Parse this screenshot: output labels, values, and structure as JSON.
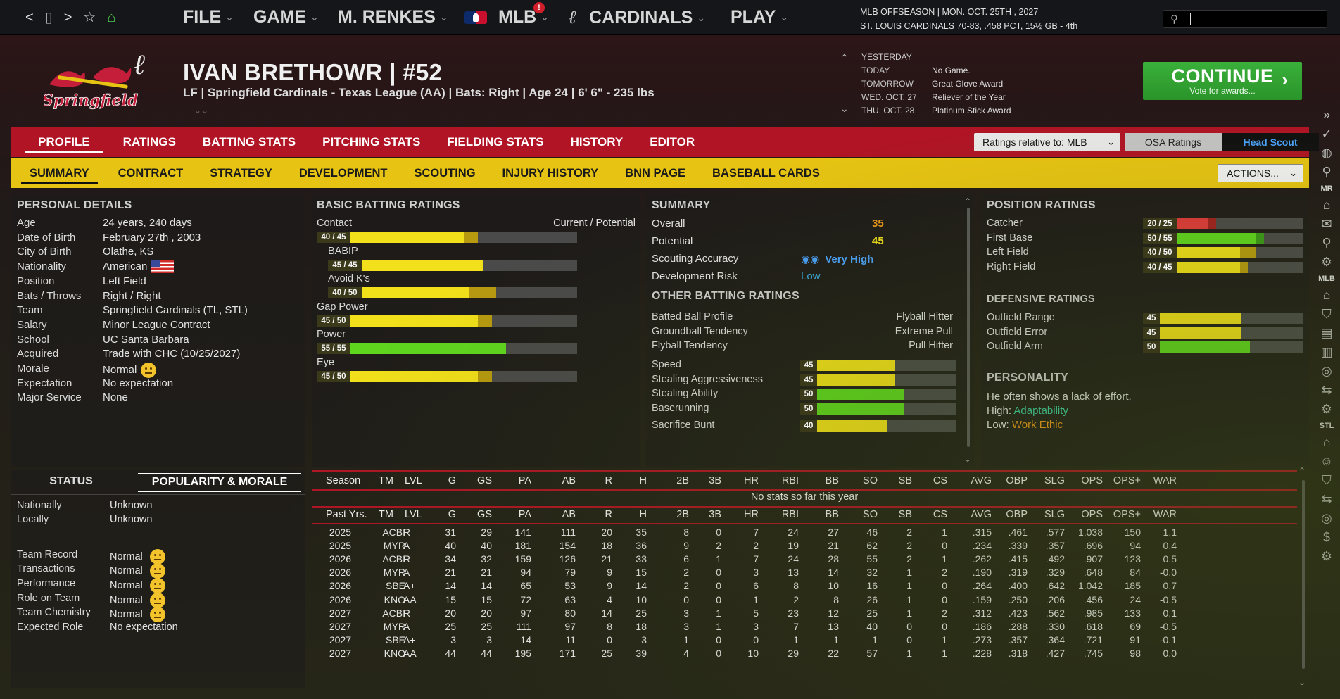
{
  "topbar": {
    "icons": [
      "back-icon",
      "device-icon",
      "forward-icon",
      "star-icon",
      "home-icon"
    ],
    "menu": [
      {
        "label": "FILE"
      },
      {
        "label": "GAME"
      },
      {
        "label": "M. RENKES"
      },
      {
        "label": "MLB"
      },
      {
        "label": "CARDINALS"
      },
      {
        "label": "PLAY"
      }
    ],
    "notification_badge": "!",
    "date_line1": "MLB OFFSEASON  |  MON. OCT. 25TH , 2027",
    "date_line2": "ST. LOUIS CARDINALS  70-83, .458 PCT, 15½ GB - 4th",
    "search_value": ""
  },
  "player": {
    "name": "IVAN BRETHOWR  |  #52",
    "info": "LF | Springfield Cardinals - Texas League (AA)  |  Bats: Right  |  Age 24  |  6' 6\"  - 235 lbs",
    "logo_text": "Springfield"
  },
  "news": {
    "items": [
      {
        "day": "YESTERDAY",
        "text": ""
      },
      {
        "day": "TODAY",
        "text": "No Game."
      },
      {
        "day": "TOMORROW",
        "text": "Great Glove Award"
      },
      {
        "day": "WED. OCT. 27",
        "text": "Reliever of the Year"
      },
      {
        "day": "THU. OCT. 28",
        "text": "Platinum Stick Award"
      }
    ]
  },
  "continue": {
    "label": "CONTINUE",
    "sub": "Vote for awards..."
  },
  "main_tabs": [
    "PROFILE",
    "RATINGS",
    "BATTING STATS",
    "PITCHING STATS",
    "FIELDING STATS",
    "HISTORY",
    "EDITOR"
  ],
  "ratings_relative": "Ratings relative to: MLB",
  "osa_ratings": "OSA Ratings",
  "head_scout": "Head Scout",
  "sub_tabs": [
    "SUMMARY",
    "CONTRACT",
    "STRATEGY",
    "DEVELOPMENT",
    "SCOUTING",
    "INJURY HISTORY",
    "BNN PAGE",
    "BASEBALL CARDS"
  ],
  "actions": "ACTIONS...",
  "personal": {
    "title": "PERSONAL DETAILS",
    "rows": [
      {
        "label": "Age",
        "value": "24 years, 240 days"
      },
      {
        "label": "Date of Birth",
        "value": "February 27th , 2003"
      },
      {
        "label": "City of Birth",
        "value": "Olathe, KS"
      },
      {
        "label": "Nationality",
        "value": "American"
      },
      {
        "label": "Position",
        "value": "Left Field"
      },
      {
        "label": "Bats / Throws",
        "value": "Right / Right"
      },
      {
        "label": "Team",
        "value": "Springfield Cardinals (TL, STL)"
      },
      {
        "label": "Salary",
        "value": "Minor League Contract"
      },
      {
        "label": "School",
        "value": "UC Santa Barbara"
      },
      {
        "label": "Acquired",
        "value": "Trade with CHC (10/25/2027)"
      },
      {
        "label": "Morale",
        "value": "Normal"
      },
      {
        "label": "Expectation",
        "value": "No expectation"
      },
      {
        "label": "Major Service",
        "value": "None"
      }
    ]
  },
  "batting": {
    "title": "BASIC BATTING RATINGS",
    "col_header": "Current / Potential",
    "ratings": [
      {
        "label": "Contact",
        "tag": "40 / 45",
        "cur": 40,
        "pot": 45,
        "color": "#f2e01a",
        "indent": false
      },
      {
        "label": "BABIP",
        "tag": "45 / 45",
        "cur": 45,
        "pot": 45,
        "color": "#f2e01a",
        "indent": true
      },
      {
        "label": "Avoid K's",
        "tag": "40 / 50",
        "cur": 40,
        "pot": 50,
        "color": "#f2e01a",
        "indent": true
      },
      {
        "label": "Gap Power",
        "tag": "45 / 50",
        "cur": 45,
        "pot": 50,
        "color": "#f2e01a",
        "indent": false
      },
      {
        "label": "Power",
        "tag": "55 / 55",
        "cur": 55,
        "pot": 55,
        "color": "#5fd61e",
        "indent": false
      },
      {
        "label": "Eye",
        "tag": "45 / 50",
        "cur": 45,
        "pot": 50,
        "color": "#f2e01a",
        "indent": false
      }
    ]
  },
  "summary": {
    "title": "SUMMARY",
    "overall_label": "Overall",
    "overall": "35",
    "potential_label": "Potential",
    "potential": "45",
    "accuracy_label": "Scouting Accuracy",
    "accuracy": "Very High",
    "risk_label": "Development Risk",
    "risk": "Low",
    "other_title": "OTHER BATTING RATINGS",
    "other": [
      {
        "label": "Batted Ball Profile",
        "value": "Flyball Hitter"
      },
      {
        "label": "Groundball Tendency",
        "value": "Extreme Pull"
      },
      {
        "label": "Flyball Tendency",
        "value": "Pull Hitter"
      }
    ],
    "running": [
      {
        "label": "Speed",
        "value": 45,
        "color": "#f2e01a"
      },
      {
        "label": "Stealing Aggressiveness",
        "value": 45,
        "color": "#f2e01a"
      },
      {
        "label": "Stealing Ability",
        "value": 50,
        "color": "#5fd61e"
      },
      {
        "label": "Baserunning",
        "value": 50,
        "color": "#5fd61e"
      },
      {
        "label": "Sacrifice Bunt",
        "value": 40,
        "color": "#f2e01a"
      }
    ]
  },
  "positions": {
    "title": "POSITION RATINGS",
    "items": [
      {
        "label": "Catcher",
        "tag": "20 / 25",
        "cur": 20,
        "pot": 25,
        "color": "#e03a3a"
      },
      {
        "label": "First Base",
        "tag": "50 / 55",
        "cur": 50,
        "pot": 55,
        "color": "#5fd61e"
      },
      {
        "label": "Left Field",
        "tag": "40 / 50",
        "cur": 40,
        "pot": 50,
        "color": "#f2e01a"
      },
      {
        "label": "Right Field",
        "tag": "40 / 45",
        "cur": 40,
        "pot": 45,
        "color": "#f2e01a"
      }
    ],
    "def_title": "DEFENSIVE RATINGS",
    "defense": [
      {
        "label": "Outfield Range",
        "value": 45,
        "color": "#f2e01a"
      },
      {
        "label": "Outfield Error",
        "value": 45,
        "color": "#f2e01a"
      },
      {
        "label": "Outfield Arm",
        "value": 50,
        "color": "#5fd61e"
      }
    ],
    "personality_title": "PERSONALITY",
    "personality_desc": "He often shows a lack of effort.",
    "high_label": "High:",
    "high": "Adaptability",
    "low_label": "Low:",
    "low": "Work Ethic"
  },
  "status": {
    "tab1": "STATUS",
    "tab2": "POPULARITY & MORALE",
    "rows": [
      {
        "label": "Nationally",
        "value": "Unknown",
        "smiley": false
      },
      {
        "label": "Locally",
        "value": "Unknown",
        "smiley": false
      },
      {
        "label": "Team Record",
        "value": "Normal",
        "smiley": true
      },
      {
        "label": "Transactions",
        "value": "Normal",
        "smiley": true
      },
      {
        "label": "Performance",
        "value": "Normal",
        "smiley": true
      },
      {
        "label": "Role on Team",
        "value": "Normal",
        "smiley": true
      },
      {
        "label": "Team Chemistry",
        "value": "Normal",
        "smiley": true
      },
      {
        "label": "Expected Role",
        "value": "No expectation",
        "smiley": false
      }
    ]
  },
  "stats": {
    "headers": [
      "Season",
      "TM",
      "LVL",
      "G",
      "GS",
      "PA",
      "AB",
      "R",
      "H",
      "2B",
      "3B",
      "HR",
      "RBI",
      "BB",
      "SO",
      "SB",
      "CS",
      "AVG",
      "OBP",
      "SLG",
      "OPS",
      "OPS+",
      "WAR"
    ],
    "past_header": "Past Yrs.",
    "no_stats": "No stats so far this year",
    "rows": [
      [
        "2025",
        "ACBI",
        "R",
        "31",
        "29",
        "141",
        "111",
        "20",
        "35",
        "8",
        "0",
        "7",
        "24",
        "27",
        "46",
        "2",
        "1",
        ".315",
        ".461",
        ".577",
        "1.038",
        "150",
        "1.1"
      ],
      [
        "2025",
        "MYR",
        "A",
        "40",
        "40",
        "181",
        "154",
        "18",
        "36",
        "9",
        "2",
        "2",
        "19",
        "21",
        "62",
        "2",
        "0",
        ".234",
        ".339",
        ".357",
        ".696",
        "94",
        "0.4"
      ],
      [
        "2026",
        "ACBI",
        "R",
        "34",
        "32",
        "159",
        "126",
        "21",
        "33",
        "6",
        "1",
        "7",
        "24",
        "28",
        "55",
        "2",
        "1",
        ".262",
        ".415",
        ".492",
        ".907",
        "123",
        "0.5"
      ],
      [
        "2026",
        "MYR",
        "A",
        "21",
        "21",
        "94",
        "79",
        "9",
        "15",
        "2",
        "0",
        "3",
        "13",
        "14",
        "32",
        "1",
        "2",
        ".190",
        ".319",
        ".329",
        ".648",
        "84",
        "-0.0"
      ],
      [
        "2026",
        "SBE",
        "A+",
        "14",
        "14",
        "65",
        "53",
        "9",
        "14",
        "2",
        "0",
        "6",
        "8",
        "10",
        "16",
        "1",
        "0",
        ".264",
        ".400",
        ".642",
        "1.042",
        "185",
        "0.7"
      ],
      [
        "2026",
        "KNO",
        "AA",
        "15",
        "15",
        "72",
        "63",
        "4",
        "10",
        "0",
        "0",
        "1",
        "2",
        "8",
        "26",
        "1",
        "0",
        ".159",
        ".250",
        ".206",
        ".456",
        "24",
        "-0.5"
      ],
      [
        "2027",
        "ACBI",
        "R",
        "20",
        "20",
        "97",
        "80",
        "14",
        "25",
        "3",
        "1",
        "5",
        "23",
        "12",
        "25",
        "1",
        "2",
        ".312",
        ".423",
        ".562",
        ".985",
        "133",
        "0.1"
      ],
      [
        "2027",
        "MYR",
        "A",
        "25",
        "25",
        "111",
        "97",
        "8",
        "18",
        "3",
        "1",
        "3",
        "7",
        "13",
        "40",
        "0",
        "0",
        ".186",
        ".288",
        ".330",
        ".618",
        "69",
        "-0.5"
      ],
      [
        "2027",
        "SBE",
        "A+",
        "3",
        "3",
        "14",
        "11",
        "0",
        "3",
        "1",
        "0",
        "0",
        "1",
        "1",
        "1",
        "0",
        "1",
        ".273",
        ".357",
        ".364",
        ".721",
        "91",
        "-0.1"
      ],
      [
        "2027",
        "KNO",
        "AA",
        "44",
        "44",
        "195",
        "171",
        "25",
        "39",
        "4",
        "0",
        "10",
        "29",
        "22",
        "57",
        "1",
        "1",
        ".228",
        ".318",
        ".427",
        ".745",
        "98",
        "0.0"
      ]
    ]
  },
  "sidebar": [
    "chevrons-right-icon",
    "check-icon",
    "globe-icon",
    "pin-icon",
    "MR",
    "home-icon",
    "mail-icon",
    "search-icon",
    "gear-icon",
    "MLB",
    "home-icon",
    "shield-icon",
    "news-icon",
    "chart-icon",
    "baseball-icon",
    "transfer-icon",
    "gear-icon",
    "STL",
    "home-icon",
    "person-icon",
    "shield-icon",
    "transfer-icon",
    "baseball-icon",
    "dollar-icon",
    "gear-icon"
  ]
}
